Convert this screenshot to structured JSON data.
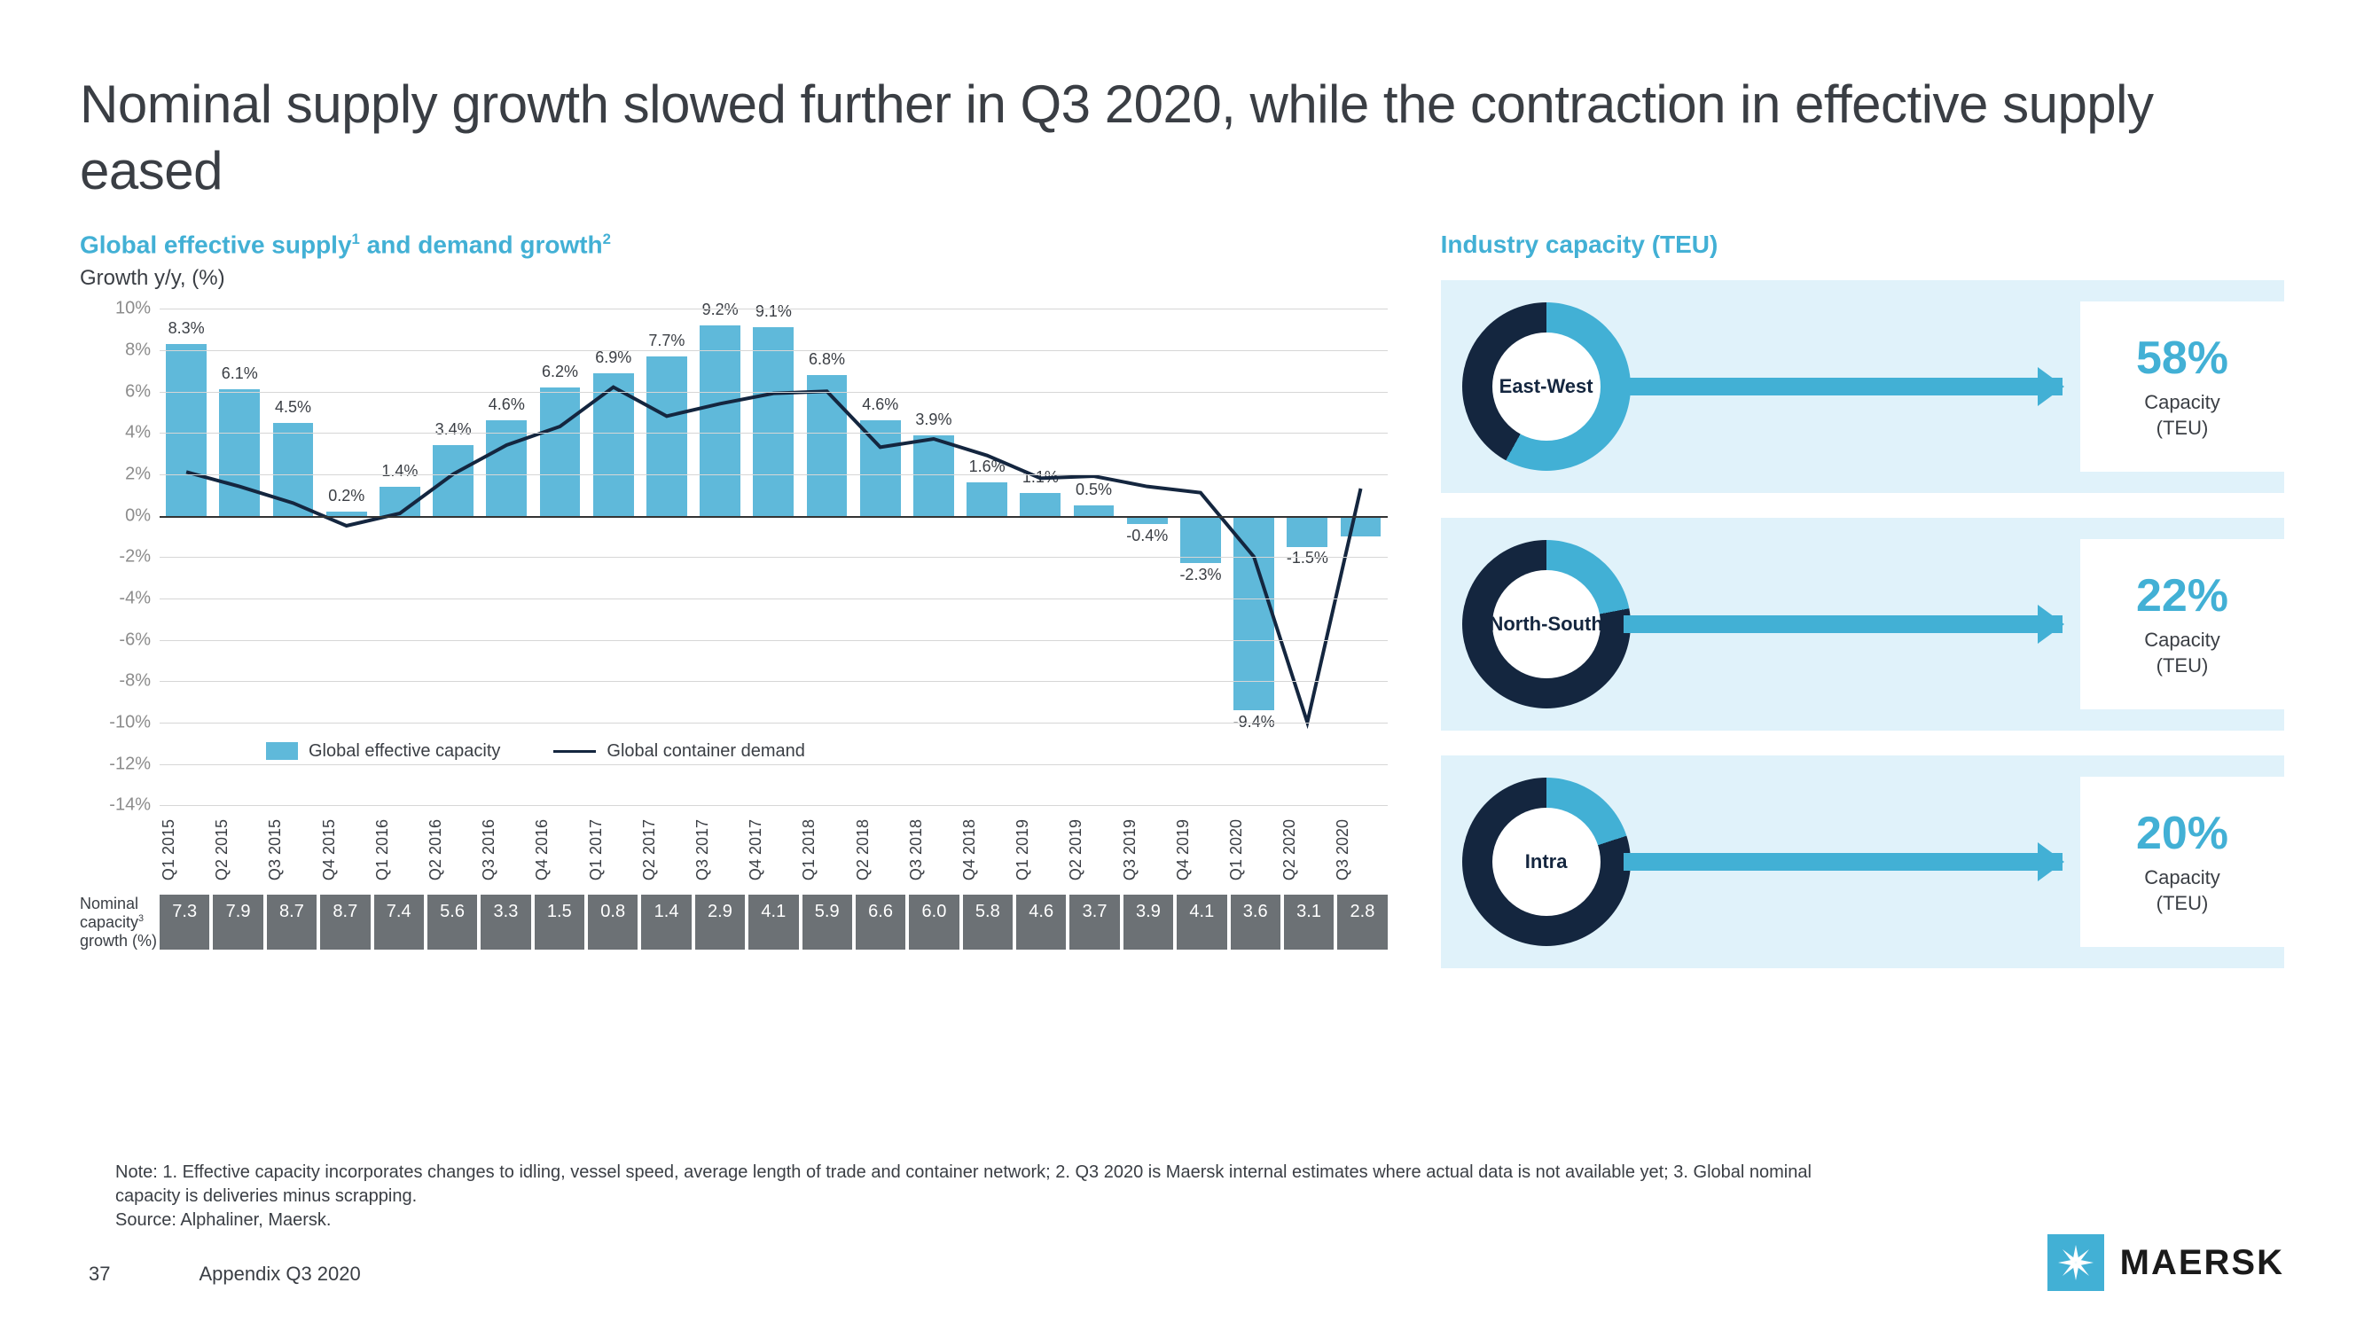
{
  "title": "Nominal supply growth slowed further in Q3 2020, while the contraction in effective supply eased",
  "colors": {
    "accent": "#42b0d5",
    "dark": "#14263f",
    "bg_light": "#e0f2fa",
    "text": "#3a3e44",
    "grid": "#d6d6d6",
    "cell_bg": "#6c7175"
  },
  "chart": {
    "title_html": "Global effective supply<sup>1</sup> and demand growth<sup>2</sup>",
    "subtitle": "Growth y/y, (%)",
    "type": "bar+line",
    "ylim": [
      -14,
      10
    ],
    "ytick_step": 2,
    "ytick_format_pct": true,
    "bar_color": "#5fb9da",
    "line_color": "#14263f",
    "line_width": 4,
    "categories": [
      "Q1 2015",
      "Q2 2015",
      "Q3 2015",
      "Q4 2015",
      "Q1 2016",
      "Q2 2016",
      "Q3 2016",
      "Q4 2016",
      "Q1 2017",
      "Q2 2017",
      "Q3 2017",
      "Q4 2017",
      "Q1 2018",
      "Q2 2018",
      "Q3 2018",
      "Q4 2018",
      "Q1 2019",
      "Q2 2019",
      "Q3 2019",
      "Q4 2019",
      "Q1 2020",
      "Q2 2020",
      "Q3 2020"
    ],
    "bar_values": [
      8.3,
      6.1,
      4.5,
      0.2,
      1.4,
      3.4,
      4.6,
      6.2,
      6.9,
      7.7,
      9.2,
      9.1,
      6.8,
      4.6,
      3.9,
      1.6,
      1.1,
      0.5,
      -0.4,
      -2.3,
      -9.4,
      -1.5,
      -1.0
    ],
    "bar_labels": [
      "8.3%",
      "6.1%",
      "4.5%",
      "0.2%",
      "1.4%",
      "3.4%",
      "4.6%",
      "6.2%",
      "6.9%",
      "7.7%",
      "9.2%",
      "9.1%",
      "6.8%",
      "4.6%",
      "3.9%",
      "1.6%",
      "1.1%",
      "0.5%",
      "-0.4%",
      "-2.3%",
      "-9.4%",
      "-1.5%",
      ""
    ],
    "line_values": [
      2.1,
      1.4,
      0.6,
      -0.5,
      0.1,
      2.0,
      3.4,
      4.3,
      6.2,
      4.8,
      5.4,
      5.9,
      6.0,
      3.3,
      3.7,
      2.9,
      1.8,
      1.9,
      1.4,
      1.1,
      -2.0,
      -10.0,
      1.3
    ],
    "legend": {
      "bar": "Global effective capacity",
      "line": "Global container demand"
    },
    "legend_top_pct": 87
  },
  "nominal": {
    "label_html": "Nominal capacity<sup>3</sup> growth (%)",
    "cells": [
      "7.3",
      "7.9",
      "8.7",
      "8.7",
      "7.4",
      "5.6",
      "3.3",
      "1.5",
      "0.8",
      "1.4",
      "2.9",
      "4.1",
      "5.9",
      "6.6",
      "6.0",
      "5.8",
      "4.6",
      "3.7",
      "3.9",
      "4.1",
      "3.6",
      "3.1",
      "2.8"
    ],
    "cell_bg": "#6c7175"
  },
  "capacity": {
    "title": "Industry capacity (TEU)",
    "items": [
      {
        "label": "East-West",
        "pct": 58,
        "pct_text": "58%",
        "sub": "Capacity (TEU)"
      },
      {
        "label": "North-South",
        "pct": 22,
        "pct_text": "22%",
        "sub": "Capacity (TEU)"
      },
      {
        "label": "Intra",
        "pct": 20,
        "pct_text": "20%",
        "sub": "Capacity (TEU)"
      }
    ],
    "donut": {
      "ring_color": "#14263f",
      "slice_color": "#42b0d5",
      "inner_bg": "#ffffff",
      "thickness": 34
    }
  },
  "notes": "Note: 1. Effective capacity incorporates changes to idling, vessel speed, average length of trade and container network; 2. Q3 2020 is Maersk internal estimates where actual data is not available yet; 3. Global nominal capacity is deliveries minus scrapping.",
  "source": "Source: Alphaliner, Maersk.",
  "footer": {
    "page": "37",
    "appendix": "Appendix Q3 2020"
  },
  "brand": "MAERSK"
}
